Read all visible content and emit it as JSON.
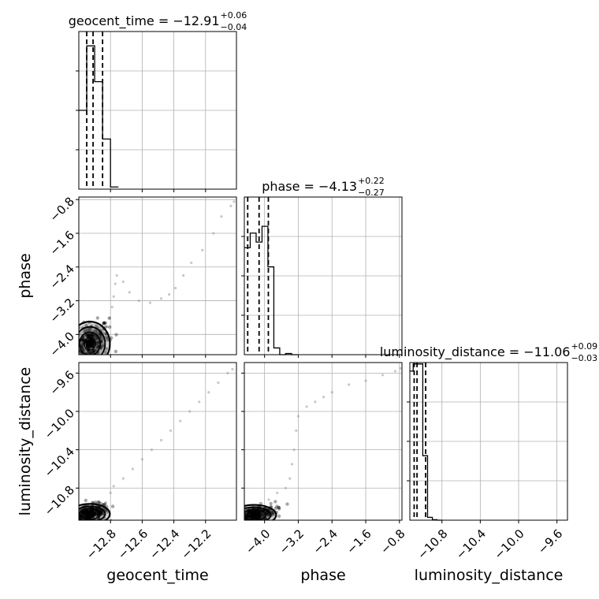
{
  "chart_data": {
    "type": "corner",
    "grid": true,
    "parameters": [
      "geocent_time",
      "phase",
      "luminosity_distance"
    ],
    "xlabels": [
      "geocent_time",
      "phase",
      "luminosity_distance"
    ],
    "ylabels": [
      "",
      "phase",
      "luminosity_distance"
    ],
    "ranges": {
      "geocent_time": [
        -13.0,
        -12.005
      ],
      "phase": [
        -4.48,
        -0.74
      ],
      "luminosity_distance": [
        -11.135,
        -9.49
      ]
    },
    "ticks": {
      "geocent_time": [
        -12.8,
        -12.6,
        -12.4,
        -12.2
      ],
      "phase": [
        -4.0,
        -3.2,
        -2.4,
        -1.6,
        -0.8
      ],
      "luminosity_distance": [
        -10.8,
        -10.4,
        -10.0,
        -9.6
      ]
    },
    "tick_labels": {
      "geocent_time": [
        "−12.8",
        "−12.6",
        "−12.4",
        "−12.2"
      ],
      "phase": [
        "−4.0",
        "−3.2",
        "−2.4",
        "−1.6",
        "−0.8"
      ],
      "luminosity_distance": [
        "−10.8",
        "−10.4",
        "−10.0",
        "−9.6"
      ]
    },
    "titles": [
      {
        "text": "geocent_time = −12.91",
        "sup": "+0.06",
        "sub": "−0.04"
      },
      {
        "text": "phase = −4.13",
        "sup": "+0.22",
        "sub": "−0.27"
      },
      {
        "text": "luminosity_distance = −11.06",
        "sup": "+0.09",
        "sub": "−0.03"
      }
    ],
    "quantiles": {
      "geocent_time": [
        -12.95,
        -12.91,
        -12.85
      ],
      "phase": [
        -4.4,
        -4.13,
        -3.91
      ],
      "luminosity_distance": [
        -11.09,
        -11.06,
        -10.97
      ]
    },
    "histograms": [
      {
        "param": "geocent_time",
        "bins": [
          -13.0,
          -12.95,
          -12.9,
          -12.85,
          -12.8,
          -12.75
        ],
        "values": [
          0.55,
          1.0,
          0.75,
          0.35,
          0.015
        ],
        "ymax": 1.1
      },
      {
        "param": "phase",
        "bins": [
          -4.48,
          -4.34,
          -4.2,
          -4.06,
          -3.92,
          -3.78,
          -3.64,
          -3.5,
          -3.36,
          -3.22
        ],
        "values": [
          0.95,
          1.08,
          1.0,
          1.14,
          0.78,
          0.06,
          0.0,
          0.01,
          0.0
        ],
        "ymax": 1.4
      },
      {
        "param": "luminosity_distance",
        "bins": [
          -11.135,
          -11.1,
          -11.05,
          -11.0,
          -10.95,
          -10.9,
          -10.85,
          -10.8
        ],
        "values": [
          1.04,
          1.09,
          1.09,
          0.45,
          0.02,
          0.003,
          0.0
        ],
        "ymax": 1.1
      }
    ],
    "scatter_tails": [
      {
        "xparam": "geocent_time",
        "yparam": "phase",
        "points": [
          [
            -12.82,
            -3.82
          ],
          [
            -12.805,
            -3.6
          ],
          [
            -12.79,
            -3.35
          ],
          [
            -12.78,
            -3.1
          ],
          [
            -12.77,
            -2.8
          ],
          [
            -12.76,
            -2.6
          ],
          [
            -12.72,
            -2.75
          ],
          [
            -12.68,
            -3.0
          ],
          [
            -12.62,
            -3.2
          ],
          [
            -12.55,
            -3.25
          ],
          [
            -12.48,
            -3.15
          ],
          [
            -12.43,
            -3.05
          ],
          [
            -12.39,
            -2.9
          ],
          [
            -12.34,
            -2.6
          ],
          [
            -12.29,
            -2.3
          ],
          [
            -12.22,
            -2.0
          ],
          [
            -12.15,
            -1.6
          ],
          [
            -12.1,
            -1.2
          ],
          [
            -12.04,
            -0.95
          ],
          [
            -12.02,
            -0.85
          ]
        ]
      },
      {
        "xparam": "geocent_time",
        "yparam": "luminosity_distance",
        "points": [
          [
            -12.83,
            -10.95
          ],
          [
            -12.8,
            -10.85
          ],
          [
            -12.78,
            -10.78
          ],
          [
            -12.72,
            -10.7
          ],
          [
            -12.66,
            -10.6
          ],
          [
            -12.6,
            -10.5
          ],
          [
            -12.54,
            -10.4
          ],
          [
            -12.48,
            -10.3
          ],
          [
            -12.42,
            -10.2
          ],
          [
            -12.36,
            -10.1
          ],
          [
            -12.3,
            -10.0
          ],
          [
            -12.24,
            -9.9
          ],
          [
            -12.18,
            -9.8
          ],
          [
            -12.12,
            -9.7
          ],
          [
            -12.06,
            -9.6
          ],
          [
            -12.03,
            -9.56
          ]
        ]
      },
      {
        "xparam": "phase",
        "yparam": "luminosity_distance",
        "points": [
          [
            -3.9,
            -10.92
          ],
          [
            -3.7,
            -10.85
          ],
          [
            -3.5,
            -10.8
          ],
          [
            -3.4,
            -10.7
          ],
          [
            -3.35,
            -10.55
          ],
          [
            -3.3,
            -10.4
          ],
          [
            -3.25,
            -10.2
          ],
          [
            -3.2,
            -10.05
          ],
          [
            -3.0,
            -9.95
          ],
          [
            -2.8,
            -9.9
          ],
          [
            -2.6,
            -9.85
          ],
          [
            -2.4,
            -9.8
          ],
          [
            -2.0,
            -9.72
          ],
          [
            -1.6,
            -9.68
          ],
          [
            -1.2,
            -9.62
          ],
          [
            -0.9,
            -9.58
          ],
          [
            -0.78,
            -9.55
          ]
        ]
      }
    ],
    "dense_cores": [
      {
        "xparam": "geocent_time",
        "yparam": "phase",
        "center": [
          -12.93,
          -4.22
        ],
        "spread": [
          0.06,
          0.25
        ],
        "corr": 0.4
      },
      {
        "xparam": "geocent_time",
        "yparam": "luminosity_distance",
        "center": [
          -12.93,
          -11.07
        ],
        "spread": [
          0.06,
          0.05
        ],
        "corr": 0.4
      },
      {
        "xparam": "phase",
        "yparam": "luminosity_distance",
        "center": [
          -4.25,
          -11.08
        ],
        "spread": [
          0.25,
          0.05
        ],
        "corr": 0.5
      }
    ]
  }
}
